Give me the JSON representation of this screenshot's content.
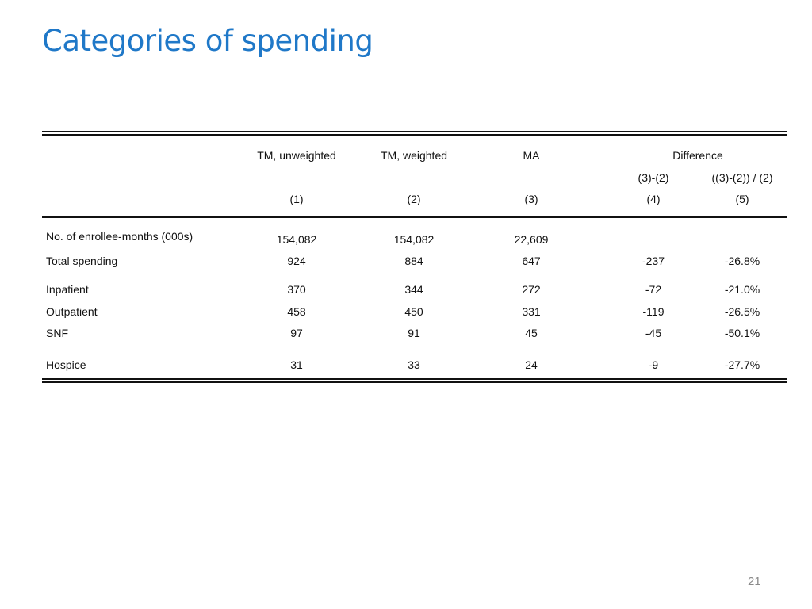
{
  "slide": {
    "title": "Categories of spending",
    "page_number": "21"
  },
  "table": {
    "headers": {
      "col1": "TM, unweighted",
      "col2": "TM, weighted",
      "col3": "MA",
      "difference": "Difference",
      "col4_sub": "(3)-(2)",
      "col5_sub": "((3)-(2)) / (2)",
      "num1": "(1)",
      "num2": "(2)",
      "num3": "(3)",
      "num4": "(4)",
      "num5": "(5)"
    },
    "rows": [
      {
        "label": "No. of enrollee-months (000s)",
        "c1": "154,082",
        "c2": "154,082",
        "c3": "22,609",
        "c4": "",
        "c5": ""
      },
      {
        "label": "Total spending",
        "c1": "924",
        "c2": "884",
        "c3": "647",
        "c4": "-237",
        "c5": "-26.8%"
      },
      {
        "label": "Inpatient",
        "c1": "370",
        "c2": "344",
        "c3": "272",
        "c4": "-72",
        "c5": "-21.0%"
      },
      {
        "label": "Outpatient",
        "c1": "458",
        "c2": "450",
        "c3": "331",
        "c4": "-119",
        "c5": "-26.5%"
      },
      {
        "label": "SNF",
        "c1": "97",
        "c2": "91",
        "c3": "45",
        "c4": "-45",
        "c5": "-50.1%"
      },
      {
        "label": "Hospice",
        "c1": "31",
        "c2": "33",
        "c3": "24",
        "c4": "-9",
        "c5": "-27.7%"
      }
    ]
  }
}
